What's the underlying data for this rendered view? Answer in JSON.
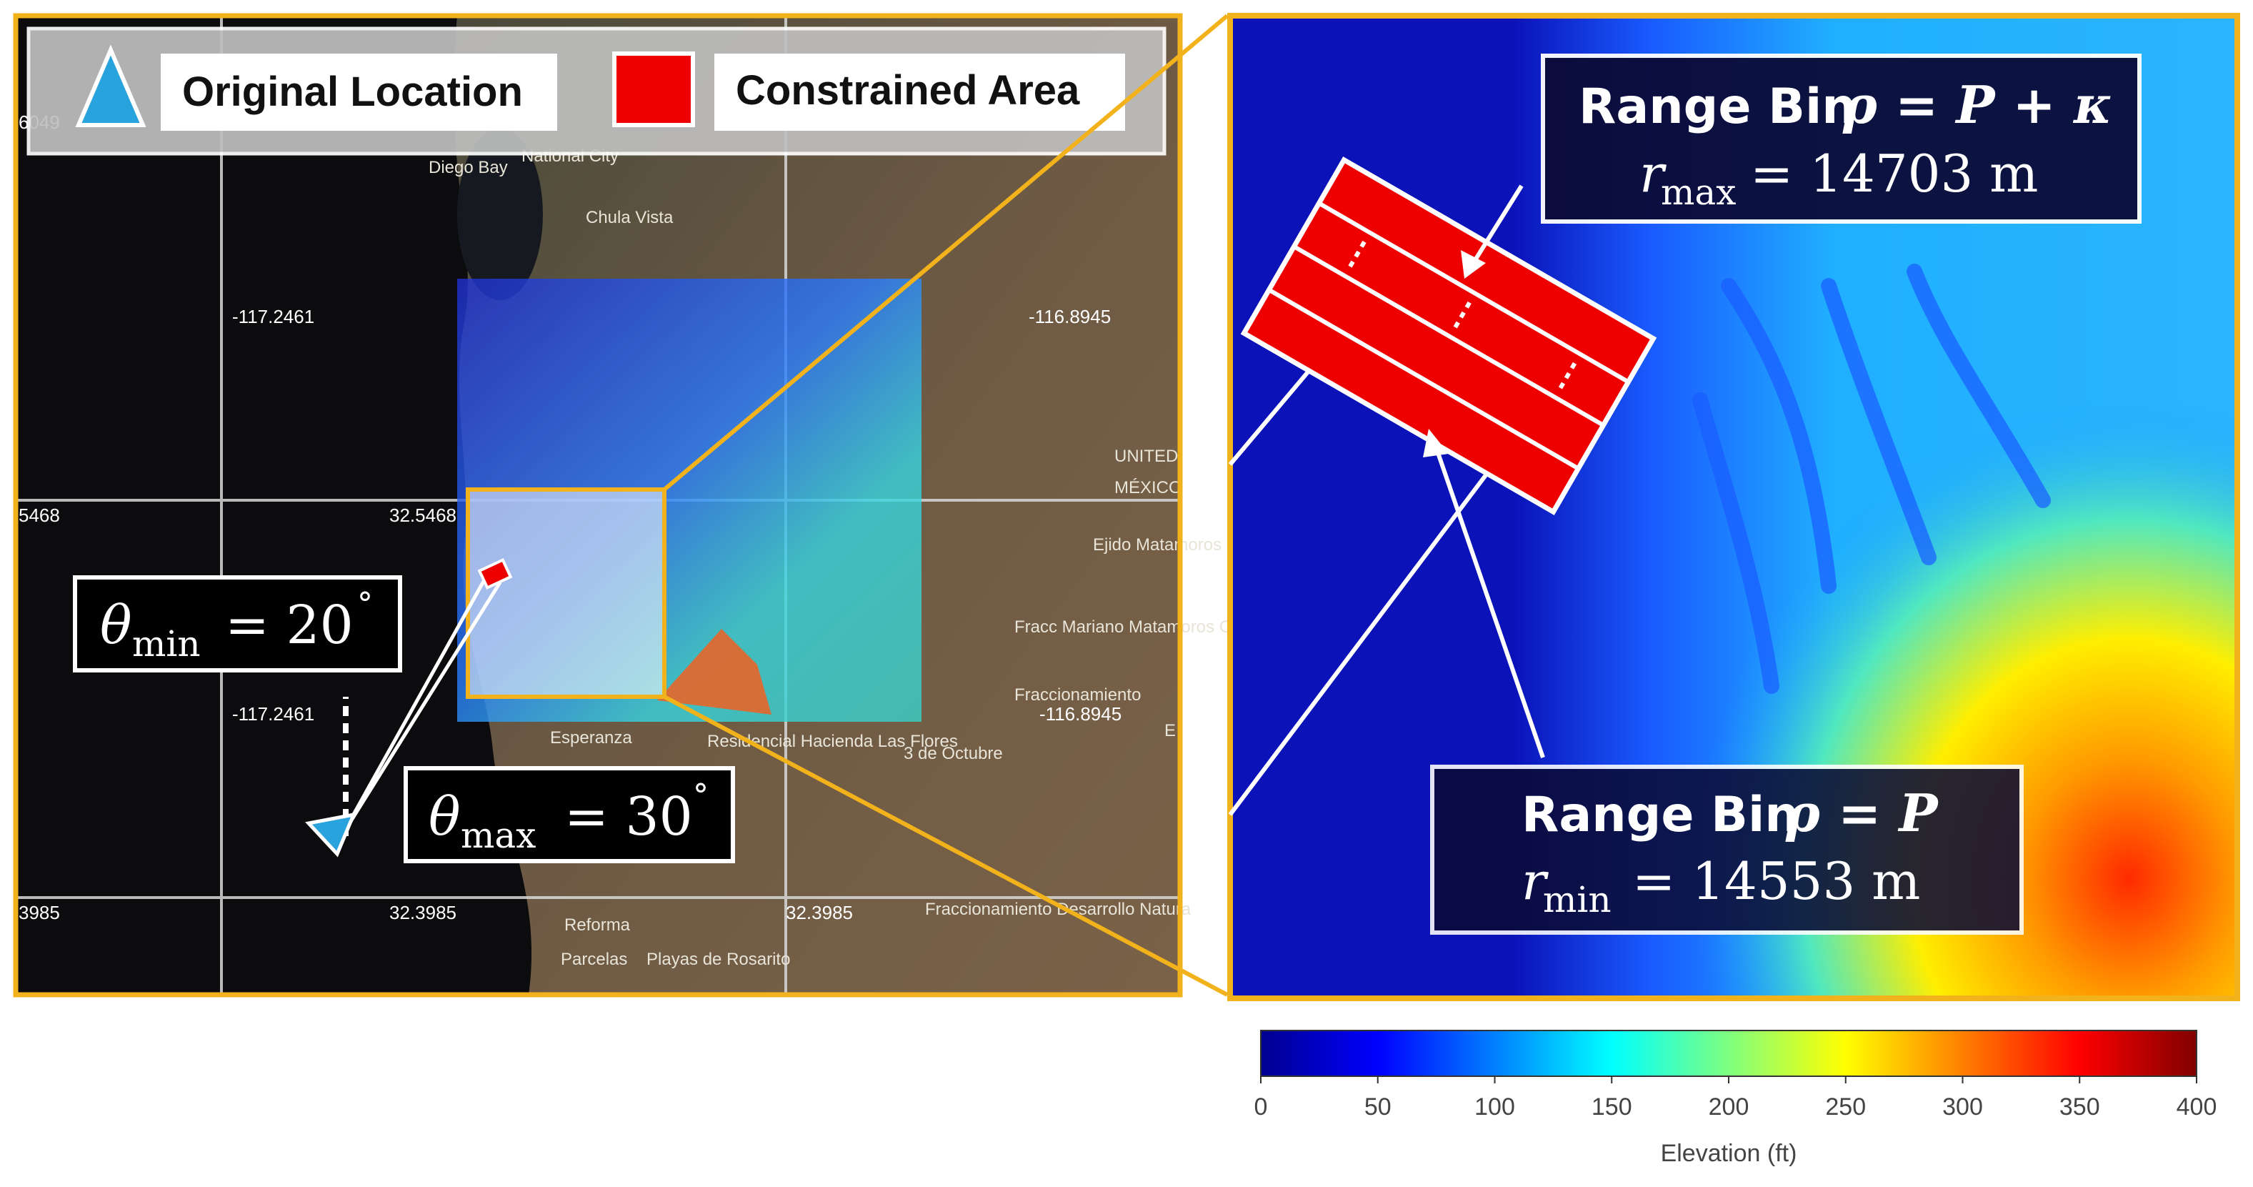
{
  "legend": {
    "original_location_label": "Original Location",
    "constrained_area_label": "Constrained Area"
  },
  "map": {
    "lon_labels": [
      "-117.2461",
      "-116.8945",
      "-117.2461",
      "-116.8945"
    ],
    "lat_labels": [
      "5468",
      "32.5468",
      "3985",
      "32.3985",
      "32.3985",
      "6049"
    ],
    "places": [
      "Diego Bay",
      "National City",
      "Chula Vista",
      "UNITED",
      "MÉXICO",
      "Ejido Matamoros",
      "Fracc Mariano Matamoros Centro",
      "Fraccionamiento",
      "Esperanza",
      "Residencial Hacienda Las Flores",
      "3 de Octubre",
      "Reforma",
      "Parcelas",
      "Playas de Rosarito",
      "Fraccionamiento Desarrollo Natura",
      "E"
    ],
    "theta_min": {
      "symbol": "θ",
      "sub": "min",
      "value": "= 20",
      "deg": "°"
    },
    "theta_max": {
      "symbol": "θ",
      "sub": "max",
      "value": "= 30",
      "deg": "°"
    }
  },
  "zoom": {
    "top_box": {
      "line1_prefix": "Range Bin ",
      "line1_math": "ρ = P + κ",
      "line2_var": "r",
      "line2_sub": "max",
      "line2_value": "= 14703 m"
    },
    "bottom_box": {
      "line1_prefix": "Range Bin ",
      "line1_math": "ρ = P",
      "line2_var": "r",
      "line2_sub": "min",
      "line2_value": "= 14553 m"
    }
  },
  "colorbar": {
    "label": "Elevation (ft)",
    "ticks": [
      "0",
      "50",
      "100",
      "150",
      "200",
      "250",
      "300",
      "350",
      "400"
    ],
    "range": [
      0,
      400
    ],
    "colormap": "jet"
  },
  "colors": {
    "frame": "#f2b21c",
    "constrained": "#ee0000",
    "marker": "#29a3dd"
  }
}
